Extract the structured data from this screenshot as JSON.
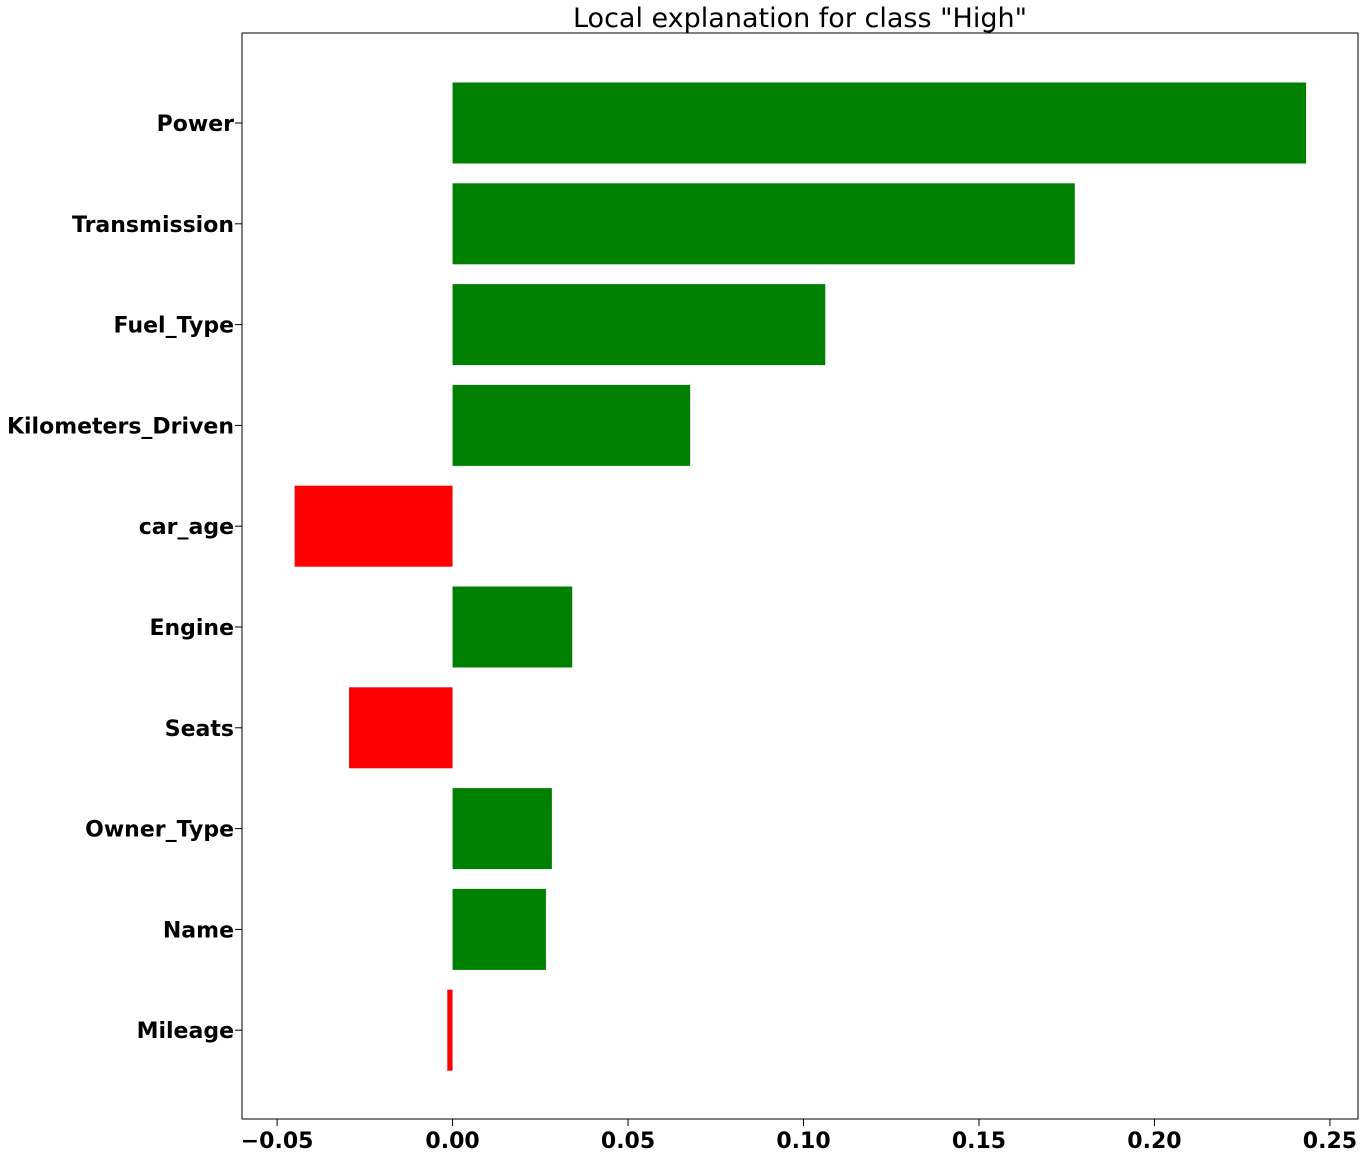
{
  "chart_data": {
    "type": "bar",
    "orientation": "horizontal",
    "title": "Local explanation for class \"High\"",
    "xlabel": "",
    "ylabel": "",
    "xlim": [
      -0.06,
      0.258
    ],
    "grid": false,
    "categories": [
      "Power",
      "Transmission",
      "Fuel_Type",
      "Kilometers_Driven",
      "car_age",
      "Engine",
      "Seats",
      "Owner_Type",
      "Name",
      "Mileage"
    ],
    "values": [
      0.2432,
      0.1773,
      0.1062,
      0.0677,
      -0.045,
      0.0341,
      -0.0295,
      0.0283,
      0.0266,
      -0.0015
    ],
    "x_ticks": [
      -0.05,
      0.0,
      0.05,
      0.1,
      0.15,
      0.2,
      0.25
    ],
    "x_tick_labels": [
      "−0.05",
      "0.00",
      "0.05",
      "0.10",
      "0.15",
      "0.20",
      "0.25"
    ],
    "colors": {
      "positive": "#008000",
      "negative": "#ff0000",
      "axis": "#000000"
    }
  }
}
